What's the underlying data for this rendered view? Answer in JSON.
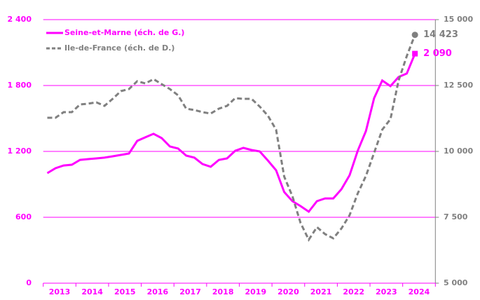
{
  "chart_data": {
    "type": "line",
    "x": [
      2013.125,
      2013.375,
      2013.625,
      2013.875,
      2014.125,
      2014.375,
      2014.625,
      2014.875,
      2015.125,
      2015.375,
      2015.625,
      2015.875,
      2016.125,
      2016.375,
      2016.625,
      2016.875,
      2017.125,
      2017.375,
      2017.625,
      2017.875,
      2018.125,
      2018.375,
      2018.625,
      2018.875,
      2019.125,
      2019.375,
      2019.625,
      2019.875,
      2020.125,
      2020.375,
      2020.625,
      2020.875,
      2021.125,
      2021.375,
      2021.625,
      2021.875,
      2022.125,
      2022.375,
      2022.625,
      2022.875,
      2023.125,
      2023.375,
      2023.625,
      2023.875,
      2024.125,
      2024.375
    ],
    "xlim": [
      2013,
      2025
    ],
    "xticks": [
      {
        "value": 2013.5,
        "label": "2013"
      },
      {
        "value": 2014.5,
        "label": "2014"
      },
      {
        "value": 2015.5,
        "label": "2015"
      },
      {
        "value": 2016.5,
        "label": "2016"
      },
      {
        "value": 2017.5,
        "label": "2017"
      },
      {
        "value": 2018.5,
        "label": "2018"
      },
      {
        "value": 2019.5,
        "label": "2019"
      },
      {
        "value": 2020.5,
        "label": "2020"
      },
      {
        "value": 2021.5,
        "label": "2021"
      },
      {
        "value": 2022.5,
        "label": "2022"
      },
      {
        "value": 2023.5,
        "label": "2023"
      },
      {
        "value": 2024.5,
        "label": "2024"
      }
    ],
    "ylim": [
      0,
      2400
    ],
    "yticks": [
      0,
      600,
      {
        "value": 1200,
        "label": "1 200"
      },
      {
        "value": 1800,
        "label": "1 800"
      },
      {
        "value": 2400,
        "label": "2 400"
      }
    ],
    "y2lim": [
      5000,
      15000
    ],
    "y2ticks": [
      {
        "value": 5000,
        "label": "5 000"
      },
      {
        "value": 7500,
        "label": "7 500"
      },
      {
        "value": 10000,
        "label": "10 000"
      },
      {
        "value": 12500,
        "label": "12 500"
      },
      {
        "value": 15000,
        "label": "15 000"
      }
    ],
    "grid": true,
    "legend": "top-left",
    "series": [
      {
        "name": "Seine-et-Marne (éch. de G.)",
        "color": "#ff00ff",
        "axis": "y",
        "dashed": false,
        "marker": "square",
        "values": [
          1002,
          1047,
          1072,
          1079,
          1123,
          1130,
          1136,
          1143,
          1155,
          1168,
          1181,
          1296,
          1328,
          1360,
          1321,
          1245,
          1226,
          1162,
          1143,
          1085,
          1060,
          1123,
          1136,
          1206,
          1232,
          1213,
          1200,
          1117,
          1028,
          830,
          747,
          702,
          651,
          747,
          772,
          772,
          855,
          983,
          1206,
          1385,
          1685,
          1845,
          1794,
          1877,
          1909,
          2090
        ],
        "value_labels": [
          null,
          null,
          null,
          null,
          null,
          null,
          null,
          null,
          null,
          null,
          null,
          null,
          null,
          null,
          null,
          null,
          null,
          null,
          null,
          null,
          null,
          null,
          null,
          null,
          null,
          null,
          null,
          null,
          null,
          null,
          null,
          null,
          null,
          null,
          null,
          null,
          null,
          null,
          null,
          null,
          null,
          null,
          null,
          null,
          null,
          "2 090"
        ]
      },
      {
        "name": "Ile-de-France (éch. de D.)",
        "color": "#808080",
        "axis": "y2",
        "dashed": true,
        "marker": "circle",
        "values": [
          11277,
          11277,
          11490,
          11490,
          11783,
          11810,
          11863,
          11730,
          11996,
          12288,
          12368,
          12661,
          12581,
          12741,
          12554,
          12368,
          12129,
          11623,
          11570,
          11490,
          11437,
          11623,
          11730,
          12022,
          11996,
          11996,
          11703,
          11357,
          10825,
          9043,
          8298,
          7288,
          6649,
          7128,
          6862,
          6702,
          7075,
          7580,
          8405,
          9070,
          9948,
          10825,
          11224,
          12687,
          13618,
          14423
        ],
        "value_labels": [
          null,
          null,
          null,
          null,
          null,
          null,
          null,
          null,
          null,
          null,
          null,
          null,
          null,
          null,
          null,
          null,
          null,
          null,
          null,
          null,
          null,
          null,
          null,
          null,
          null,
          null,
          null,
          null,
          null,
          null,
          null,
          null,
          null,
          null,
          null,
          null,
          null,
          null,
          null,
          null,
          null,
          null,
          null,
          null,
          null,
          "14 423"
        ]
      }
    ]
  }
}
